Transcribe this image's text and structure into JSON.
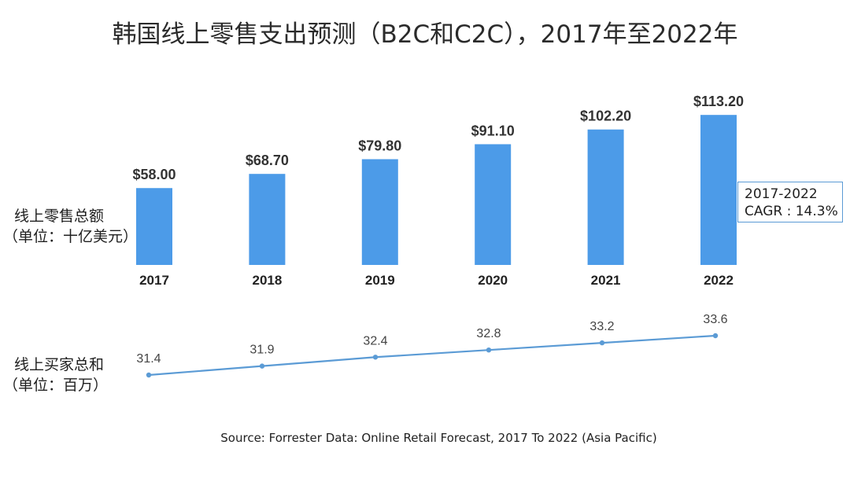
{
  "title": "韩国线上零售支出预测（B2C和C2C），2017年至2022年",
  "source": "Source: Forrester Data: Online Retail Forecast, 2017 To 2022 (Asia Pacific)",
  "annotation": {
    "line1": "2017-2022",
    "line2": "CAGR : 14.3%"
  },
  "colors": {
    "bar": "#4c9be8",
    "line": "#5b9bd5",
    "text": "#333333"
  },
  "chart_data": [
    {
      "type": "bar",
      "categories": [
        "2017",
        "2018",
        "2019",
        "2020",
        "2021",
        "2022"
      ],
      "values": [
        58.0,
        68.7,
        79.8,
        91.1,
        102.2,
        113.2
      ],
      "value_labels": [
        "$58.00",
        "$68.70",
        "$79.80",
        "$91.10",
        "$102.20",
        "$113.20"
      ],
      "ylabel_lines": [
        "线上零售总额",
        "（单位：十亿美元）"
      ],
      "ylim": [
        0,
        140
      ],
      "grid": false,
      "legend": "none"
    },
    {
      "type": "line",
      "categories": [
        "2017",
        "2018",
        "2019",
        "2020",
        "2021",
        "2022"
      ],
      "values": [
        31.4,
        31.9,
        32.4,
        32.8,
        33.2,
        33.6
      ],
      "value_labels": [
        "31.4",
        "31.9",
        "32.4",
        "32.8",
        "33.2",
        "33.6"
      ],
      "ylabel_lines": [
        "线上买家总和",
        "（单位：百万）"
      ],
      "grid": false,
      "legend": "none"
    }
  ]
}
